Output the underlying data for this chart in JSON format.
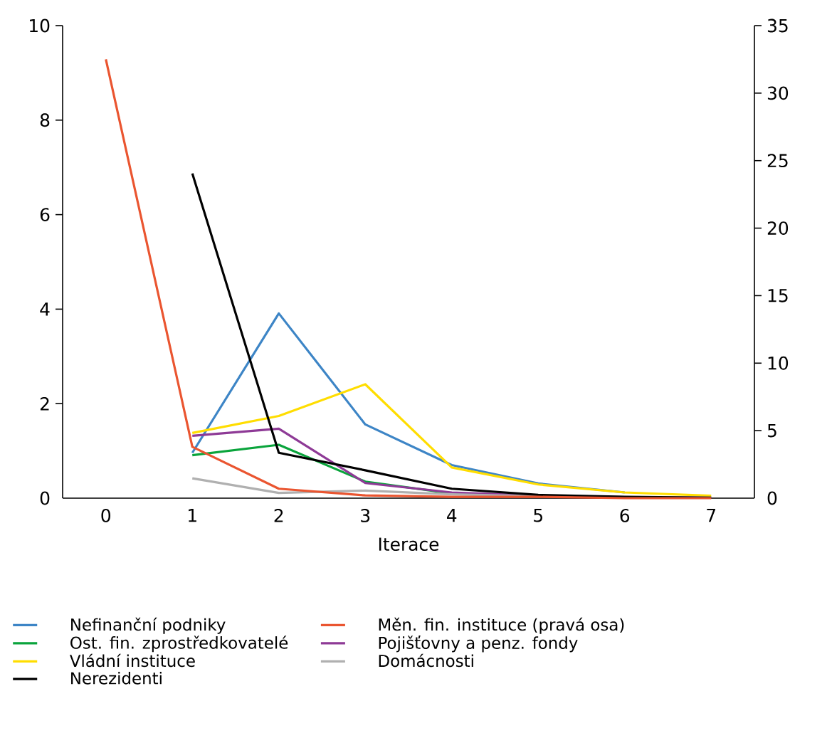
{
  "chart_data": {
    "type": "line",
    "xlabel": "Iterace",
    "x": [
      0,
      1,
      2,
      3,
      4,
      5,
      6,
      7
    ],
    "xlim": [
      -0.5,
      7.5
    ],
    "xticks": [
      0,
      1,
      2,
      3,
      4,
      5,
      6,
      7
    ],
    "ylim": [
      0,
      10
    ],
    "yticks": [
      0,
      2,
      4,
      6,
      8,
      10
    ],
    "y2lim": [
      0,
      35
    ],
    "y2ticks": [
      0,
      5,
      10,
      15,
      20,
      25,
      30,
      35
    ],
    "legend": "bottom",
    "grid": false,
    "marker": "none",
    "line_style": "solid",
    "series": [
      {
        "name": "Nefinanční podniky",
        "color": "#3d85c6",
        "values": [
          null,
          0.96,
          3.91,
          1.56,
          0.7,
          0.31,
          0.12,
          null
        ]
      },
      {
        "name": "Měn. fin. instituce (pravá osa)",
        "color": "#ea5530",
        "axis": "y2",
        "values": [
          32.5,
          3.8,
          0.7,
          0.2,
          0.1,
          0.1,
          0.0,
          0.0
        ]
      },
      {
        "name": "Ost. fin. zprostředkovatelé",
        "color": "#0aa43c",
        "values": [
          null,
          0.91,
          1.13,
          0.35,
          0.1,
          0.04,
          null,
          null
        ]
      },
      {
        "name": "Pojišťovny a penz. fondy",
        "color": "#8e3a96",
        "values": [
          null,
          1.32,
          1.47,
          0.32,
          0.12,
          0.05,
          0.02,
          0.01
        ]
      },
      {
        "name": "Vládní instituce",
        "color": "#ffdd00",
        "values": [
          null,
          1.38,
          1.74,
          2.41,
          0.65,
          0.29,
          0.12,
          0.05
        ]
      },
      {
        "name": "Domácnosti",
        "color": "#b0b0b0",
        "values": [
          null,
          0.42,
          0.11,
          0.16,
          0.08,
          0.04,
          0.02,
          0.01
        ]
      },
      {
        "name": "Nerezidenti",
        "color": "#000000",
        "values": [
          null,
          6.87,
          0.96,
          0.59,
          0.2,
          0.07,
          0.03,
          0.01
        ]
      }
    ]
  }
}
